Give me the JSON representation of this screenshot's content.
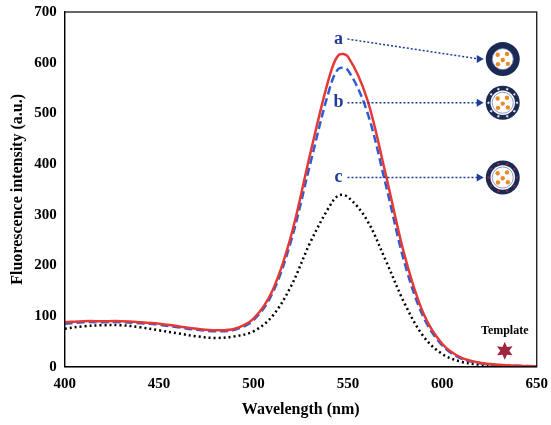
{
  "chart_data": {
    "type": "line",
    "x_label": "Wavelength (nm)",
    "y_label": "Fluorescence intensity (a.u.)",
    "x": [
      400,
      410,
      420,
      430,
      440,
      450,
      460,
      470,
      480,
      490,
      500,
      510,
      520,
      530,
      540,
      545,
      550,
      560,
      570,
      580,
      590,
      600,
      610,
      620,
      630,
      640,
      650
    ],
    "series": [
      {
        "name": "a",
        "color": "#e53935",
        "line_style": "solid",
        "values": [
          88,
          90,
          90,
          90,
          88,
          85,
          80,
          75,
          72,
          75,
          95,
          150,
          260,
          420,
          570,
          615,
          612,
          530,
          380,
          220,
          105,
          45,
          18,
          8,
          4,
          2,
          1
        ]
      },
      {
        "name": "b",
        "color": "#2f5bd3",
        "line_style": "dashed",
        "values": [
          85,
          88,
          88,
          88,
          86,
          83,
          78,
          73,
          70,
          73,
          92,
          145,
          250,
          400,
          545,
          588,
          585,
          505,
          360,
          205,
          98,
          42,
          16,
          7,
          3,
          2,
          1
        ]
      },
      {
        "name": "c",
        "color": "#000000",
        "line_style": "dotted",
        "values": [
          75,
          80,
          82,
          82,
          78,
          72,
          66,
          60,
          57,
          60,
          70,
          100,
          160,
          245,
          315,
          338,
          335,
          290,
          210,
          125,
          60,
          25,
          10,
          4,
          2,
          1,
          1
        ]
      }
    ],
    "xlim": [
      400,
      650
    ],
    "xticks": [
      400,
      450,
      500,
      550,
      600,
      650
    ],
    "ylim": [
      0,
      700
    ],
    "yticks": [
      0,
      100,
      200,
      300,
      400,
      500,
      600,
      700
    ],
    "grid": false,
    "annotations": [
      "Template"
    ]
  }
}
